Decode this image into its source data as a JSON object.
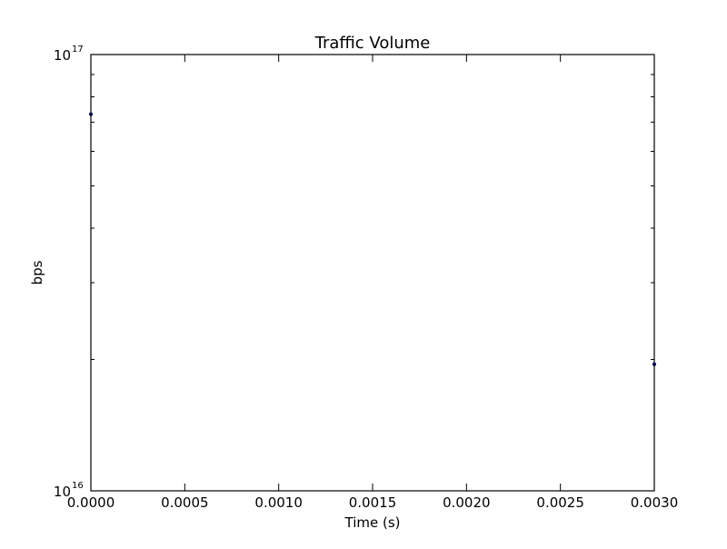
{
  "chart_data": {
    "type": "scatter",
    "title": "Traffic Volume",
    "xlabel": "Time (s)",
    "ylabel": "bps",
    "xlim": [
      0.0,
      0.003
    ],
    "ylim": [
      1e+16,
      1e+17
    ],
    "y_scale": "log",
    "x_ticks": [
      "0.0000",
      "0.0005",
      "0.0010",
      "0.0015",
      "0.0020",
      "0.0025",
      "0.0030"
    ],
    "y_ticks": [
      {
        "base": "10",
        "exp": "16"
      },
      {
        "base": "10",
        "exp": "17"
      }
    ],
    "grid": false,
    "legend": "none",
    "series": [
      {
        "color": "#000080",
        "points": [
          {
            "x": 0.0,
            "y": 7.3e+16
          },
          {
            "x": 0.003,
            "y": 1.95e+16
          }
        ]
      }
    ]
  }
}
